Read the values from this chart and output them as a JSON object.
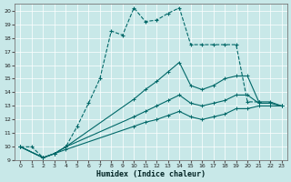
{
  "xlabel": "Humidex (Indice chaleur)",
  "bg_color": "#c8e8e8",
  "line_color": "#006868",
  "grid_color": "#ffffff",
  "xlim": [
    -0.5,
    23.5
  ],
  "ylim": [
    9,
    20.5
  ],
  "xticks": [
    0,
    1,
    2,
    3,
    4,
    5,
    6,
    7,
    8,
    9,
    10,
    11,
    12,
    13,
    14,
    15,
    16,
    17,
    18,
    19,
    20,
    21,
    22,
    23
  ],
  "yticks": [
    9,
    10,
    11,
    12,
    13,
    14,
    15,
    16,
    17,
    18,
    19,
    20
  ],
  "lines": [
    {
      "x": [
        0,
        1,
        2,
        3,
        4,
        5,
        6,
        7,
        8,
        9,
        10,
        11,
        12,
        13,
        14,
        15,
        16,
        17,
        18,
        19,
        20,
        21
      ],
      "y": [
        10.0,
        10.0,
        9.2,
        9.5,
        10.0,
        11.5,
        13.2,
        15.0,
        18.5,
        18.2,
        20.2,
        19.2,
        19.3,
        19.8,
        20.2,
        17.5,
        17.5,
        17.5,
        17.5,
        17.5,
        13.3,
        13.3
      ]
    },
    {
      "x": [
        0,
        2,
        3,
        4,
        10,
        11,
        12,
        13,
        14,
        15,
        16,
        17,
        18,
        19,
        20,
        21,
        22,
        23
      ],
      "y": [
        10.0,
        9.2,
        9.5,
        10.0,
        13.5,
        14.2,
        14.8,
        15.5,
        16.2,
        14.5,
        14.2,
        14.5,
        15.0,
        15.2,
        15.2,
        13.3,
        13.3,
        13.0
      ]
    },
    {
      "x": [
        0,
        2,
        3,
        4,
        10,
        11,
        12,
        13,
        14,
        15,
        16,
        17,
        18,
        19,
        20,
        21,
        22,
        23
      ],
      "y": [
        10.0,
        9.2,
        9.5,
        10.0,
        12.2,
        12.6,
        13.0,
        13.4,
        13.8,
        13.2,
        13.0,
        13.2,
        13.4,
        13.8,
        13.8,
        13.2,
        13.2,
        13.0
      ]
    },
    {
      "x": [
        0,
        2,
        3,
        4,
        10,
        11,
        12,
        13,
        14,
        15,
        16,
        17,
        18,
        19,
        20,
        21,
        22,
        23
      ],
      "y": [
        10.0,
        9.2,
        9.5,
        9.8,
        11.5,
        11.8,
        12.0,
        12.3,
        12.6,
        12.2,
        12.0,
        12.2,
        12.4,
        12.8,
        12.8,
        13.0,
        13.0,
        13.0
      ]
    }
  ]
}
